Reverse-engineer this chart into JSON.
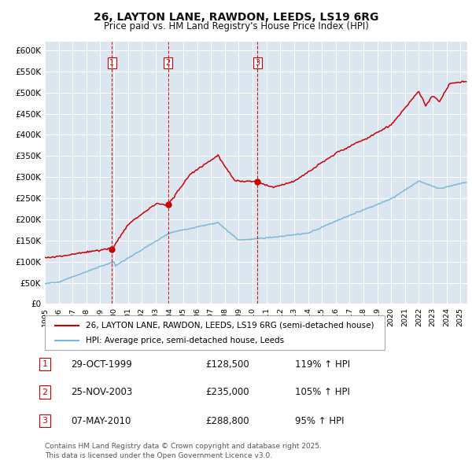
{
  "title": "26, LAYTON LANE, RAWDON, LEEDS, LS19 6RG",
  "subtitle": "Price paid vs. HM Land Registry's House Price Index (HPI)",
  "background_color": "#dce6f0",
  "plot_bg_color": "#dce6f0",
  "grid_color": "#ffffff",
  "red_color": "#cc0000",
  "blue_color": "#7ab8d9",
  "ylim": [
    0,
    620000
  ],
  "yticks": [
    0,
    50000,
    100000,
    150000,
    200000,
    250000,
    300000,
    350000,
    400000,
    450000,
    500000,
    550000,
    600000
  ],
  "ytick_labels": [
    "£0",
    "£50K",
    "£100K",
    "£150K",
    "£200K",
    "£250K",
    "£300K",
    "£350K",
    "£400K",
    "£450K",
    "£500K",
    "£550K",
    "£600K"
  ],
  "sale_labels": [
    "1",
    "2",
    "3"
  ],
  "sale_years": [
    1999.83,
    2003.9,
    2010.36
  ],
  "sale_prices": [
    128500,
    235000,
    288800
  ],
  "legend_label_red": "26, LAYTON LANE, RAWDON, LEEDS, LS19 6RG (semi-detached house)",
  "legend_label_blue": "HPI: Average price, semi-detached house, Leeds",
  "footnote": "Contains HM Land Registry data © Crown copyright and database right 2025.\nThis data is licensed under the Open Government Licence v3.0.",
  "table_rows": [
    [
      "1",
      "29-OCT-1999",
      "£128,500",
      "119% ↑ HPI"
    ],
    [
      "2",
      "25-NOV-2003",
      "£235,000",
      "105% ↑ HPI"
    ],
    [
      "3",
      "07-MAY-2010",
      "£288,800",
      "95% ↑ HPI"
    ]
  ]
}
